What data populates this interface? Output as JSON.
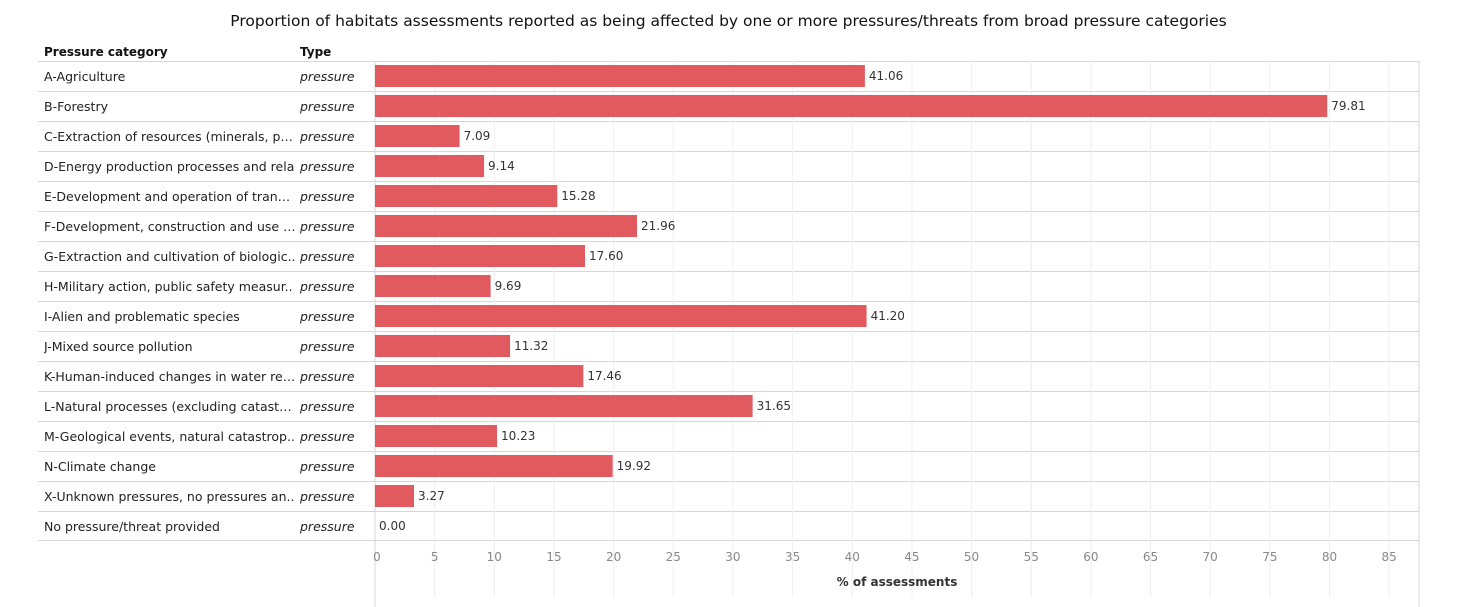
{
  "title": "Proportion of habitats  assessments reported as being affected by one or more pressures/threats from broad pressure categories",
  "headers": {
    "category": "Pressure category",
    "type": "Type"
  },
  "colors": {
    "bar": "#e05a5f",
    "gridline": "#eeeeee",
    "border": "#d6d6d6"
  },
  "chart_data": {
    "type": "bar",
    "orientation": "horizontal",
    "categories": [
      "A-Agriculture",
      "B-Forestry",
      "C-Extraction of resources (minerals, pe..",
      "D-Energy production processes and rela",
      "E-Development and operation of transp..",
      "F-Development, construction and use of..",
      "G-Extraction and cultivation of biologic..",
      "H-Military action, public safety measur..",
      "I-Alien and problematic species",
      "J-Mixed source pollution",
      "K-Human-induced changes in water regi..",
      "L-Natural processes (excluding catastro..",
      "M-Geological events, natural catastrop..",
      "N-Climate change",
      "X-Unknown pressures, no pressures an..",
      "No pressure/threat provided"
    ],
    "types": [
      "pressure",
      "pressure",
      "pressure",
      "pressure",
      "pressure",
      "pressure",
      "pressure",
      "pressure",
      "pressure",
      "pressure",
      "pressure",
      "pressure",
      "pressure",
      "pressure",
      "pressure",
      "pressure"
    ],
    "values": [
      41.06,
      79.81,
      7.09,
      9.14,
      15.28,
      21.96,
      17.6,
      9.69,
      41.2,
      11.32,
      17.46,
      31.65,
      10.23,
      19.92,
      3.27,
      0.0
    ],
    "value_labels": [
      "41.06",
      "79.81",
      "7.09",
      "9.14",
      "15.28",
      "21.96",
      "17.60",
      "9.69",
      "41.20",
      "11.32",
      "17.46",
      "31.65",
      "10.23",
      "19.92",
      "3.27",
      "0.00"
    ],
    "xlim": [
      0,
      87.5
    ],
    "xticks": [
      0,
      5,
      10,
      15,
      20,
      25,
      30,
      35,
      40,
      45,
      50,
      55,
      60,
      65,
      70,
      75,
      80,
      85
    ],
    "xlabel": "% of assessments",
    "grid": true
  }
}
